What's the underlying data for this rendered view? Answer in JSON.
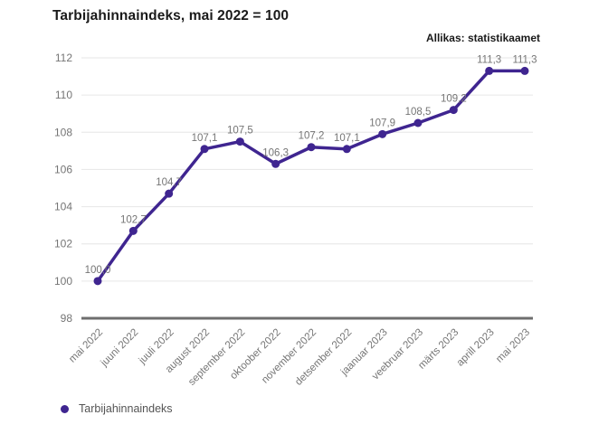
{
  "header": {
    "title": "Tarbijahinnaindeks, mai 2022 = 100",
    "source": "Allikas: statistikaamet"
  },
  "legend": {
    "label": "Tarbijahinnaindeks"
  },
  "colors": {
    "line": "#3f2590",
    "marker": "#3f2590",
    "grid": "#e6e6e6",
    "axis": "#6e6e6e",
    "tick_label": "#757575",
    "data_label": "#757575",
    "title_text": "#1a1a1a",
    "legend_text": "#545454",
    "background": "#ffffff"
  },
  "chart_data": {
    "type": "line",
    "title": "Tarbijahinnaindeks, mai 2022 = 100",
    "source": "Allikas: statistikaamet",
    "categories": [
      "mai 2022",
      "juuni 2022",
      "juuli 2022",
      "august 2022",
      "september 2022",
      "oktoober 2022",
      "november 2022",
      "detsember 2022",
      "jaanuar 2023",
      "veebruar 2023",
      "märts 2023",
      "aprill 2023",
      "mai 2023"
    ],
    "series": [
      {
        "name": "Tarbijahinnaindeks",
        "values": [
          100.0,
          102.7,
          104.7,
          107.1,
          107.5,
          106.3,
          107.2,
          107.1,
          107.9,
          108.5,
          109.2,
          111.3,
          111.3
        ],
        "value_labels": [
          "100,0",
          "102,7",
          "104,7",
          "107,1",
          "107,5",
          "106,3",
          "107,2",
          "107,1",
          "107,9",
          "108,5",
          "109,2",
          "111,3",
          "111,3"
        ]
      }
    ],
    "xlabel": "",
    "ylabel": "",
    "ylim": [
      98,
      112
    ],
    "yticks": [
      98,
      100,
      102,
      104,
      106,
      108,
      110,
      112
    ],
    "grid": true,
    "legend_position": "bottom",
    "data_labels_shown": true
  }
}
